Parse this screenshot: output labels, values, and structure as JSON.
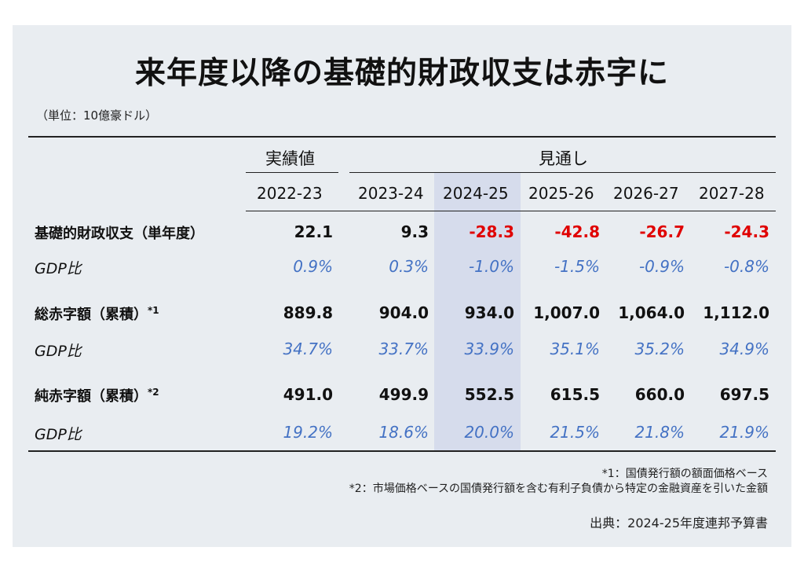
{
  "title": "来年度以降の基礎的財政収支は赤字に",
  "unit": "（単位：10億豪ドル）",
  "headers": {
    "actual": "実績値",
    "forecast": "見通し",
    "years": [
      "2022-23",
      "2023-24",
      "2024-25",
      "2025-26",
      "2026-27",
      "2027-28"
    ],
    "highlighted_year": "2024-25"
  },
  "rows": [
    {
      "label": "基礎的財政収支（単年度）",
      "values": [
        "22.1",
        "9.3",
        "-28.3",
        "-42.8",
        "-26.7",
        "-24.3"
      ],
      "gdp_label": "GDP比",
      "gdp": [
        "0.9%",
        "0.3%",
        "-1.0%",
        "-1.5%",
        "-0.9%",
        "-0.8%"
      ]
    },
    {
      "label": "総赤字額（累積）",
      "note_mark": "*1",
      "values": [
        "889.8",
        "904.0",
        "934.0",
        "1,007.0",
        "1,064.0",
        "1,112.0"
      ],
      "gdp_label": "GDP比",
      "gdp": [
        "34.7%",
        "33.7%",
        "33.9%",
        "35.1%",
        "35.2%",
        "34.9%"
      ]
    },
    {
      "label": "純赤字額（累積）",
      "note_mark": "*2",
      "values": [
        "491.0",
        "499.9",
        "552.5",
        "615.5",
        "660.0",
        "697.5"
      ],
      "gdp_label": "GDP比",
      "gdp": [
        "19.2%",
        "18.6%",
        "20.0%",
        "21.5%",
        "21.8%",
        "21.9%"
      ]
    }
  ],
  "footnotes": [
    "*1：国債発行額の額面価格ベース",
    "*2：市場価格ベースの国債発行額を含む有利子負債から特定の金融資産を引いた金額"
  ],
  "source": "出典：2024-25年度連邦予算書",
  "colors": {
    "negative": "#e00000",
    "gdp_ratio": "#4472c4",
    "highlight": "#d6dcec",
    "panel": "#e9edf1"
  }
}
